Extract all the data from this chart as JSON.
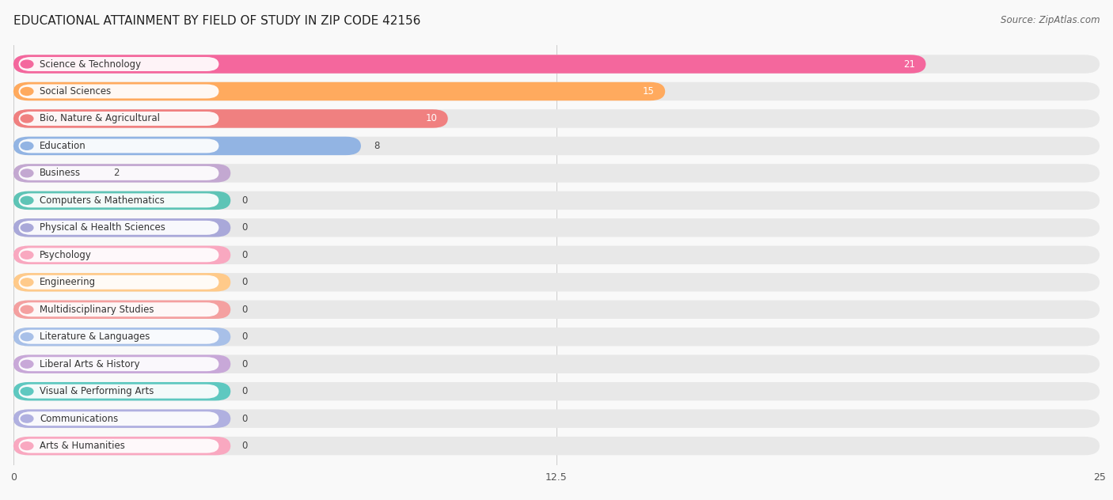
{
  "title": "EDUCATIONAL ATTAINMENT BY FIELD OF STUDY IN ZIP CODE 42156",
  "source": "Source: ZipAtlas.com",
  "categories": [
    "Science & Technology",
    "Social Sciences",
    "Bio, Nature & Agricultural",
    "Education",
    "Business",
    "Computers & Mathematics",
    "Physical & Health Sciences",
    "Psychology",
    "Engineering",
    "Multidisciplinary Studies",
    "Literature & Languages",
    "Liberal Arts & History",
    "Visual & Performing Arts",
    "Communications",
    "Arts & Humanities"
  ],
  "values": [
    21,
    15,
    10,
    8,
    2,
    0,
    0,
    0,
    0,
    0,
    0,
    0,
    0,
    0,
    0
  ],
  "bar_colors": [
    "#F4679D",
    "#FFAA5E",
    "#F08080",
    "#92B4E3",
    "#C3A8D1",
    "#5EC4B6",
    "#A9A8D9",
    "#F9A8C0",
    "#FFCA8A",
    "#F4A0A0",
    "#A8C0E8",
    "#C8A8D8",
    "#5EC8C0",
    "#B0B0E0",
    "#F9A8C0"
  ],
  "xlim": [
    0,
    25
  ],
  "xticks": [
    0,
    12.5,
    25
  ],
  "background_color": "#f9f9f9",
  "bar_background_color": "#e8e8e8",
  "title_fontsize": 11,
  "source_fontsize": 8.5,
  "label_fontsize": 8.5,
  "value_fontsize": 8.5,
  "bar_height": 0.68,
  "figsize": [
    14.06,
    6.32
  ]
}
